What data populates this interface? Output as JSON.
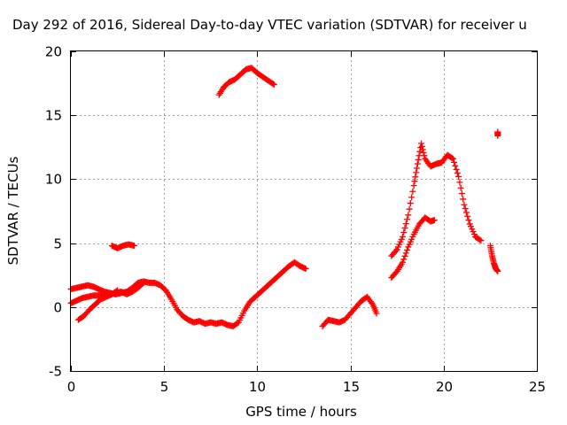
{
  "chart_data": {
    "type": "scatter",
    "title": "Day 292 of 2016, Sidereal Day-to-day VTEC variation (SDTVAR) for receiver u",
    "xlabel": "GPS time / hours",
    "ylabel": "SDTVAR / TECUs",
    "xlim": [
      0,
      25
    ],
    "ylim": [
      -5,
      20
    ],
    "x_ticks": [
      0,
      5,
      10,
      15,
      20,
      25
    ],
    "y_ticks": [
      -5,
      0,
      5,
      10,
      15,
      20
    ],
    "x_tick_labels": [
      "0",
      "5",
      "10",
      "15",
      "20",
      "25"
    ],
    "y_tick_labels": [
      "-5",
      "0",
      "5",
      "10",
      "15",
      "20"
    ],
    "grid": true,
    "marker": "+",
    "color": "#ff0000",
    "series": [
      {
        "x": [
          0.0,
          0.3,
          0.6,
          0.9,
          1.2,
          1.5,
          1.8,
          2.1,
          2.4,
          2.7,
          3.0,
          3.3,
          3.6,
          3.9,
          4.2,
          4.5,
          4.8,
          5.1,
          5.4,
          5.7,
          6.0,
          6.3,
          6.6,
          6.9,
          7.2,
          7.5,
          7.8,
          8.1,
          8.4,
          8.7,
          9.0,
          9.3,
          9.6,
          9.9,
          10.2,
          10.5,
          10.8,
          11.1,
          11.4,
          11.7,
          12.0,
          12.3,
          12.6
        ],
        "y": [
          1.4,
          1.5,
          1.6,
          1.7,
          1.6,
          1.4,
          1.2,
          1.1,
          1.0,
          1.1,
          1.2,
          1.5,
          1.9,
          2.0,
          1.9,
          1.9,
          1.7,
          1.3,
          0.6,
          -0.2,
          -0.7,
          -1.0,
          -1.2,
          -1.1,
          -1.3,
          -1.2,
          -1.3,
          -1.2,
          -1.4,
          -1.5,
          -1.2,
          -0.3,
          0.4,
          0.8,
          1.2,
          1.6,
          2.0,
          2.4,
          2.8,
          3.2,
          3.5,
          3.2,
          3.0
        ]
      },
      {
        "x": [
          0.0,
          0.3,
          0.6,
          0.9,
          1.2,
          1.5,
          1.8,
          2.1,
          2.4,
          2.7,
          3.0,
          3.3,
          3.6,
          3.9
        ],
        "y": [
          0.3,
          0.5,
          0.7,
          0.8,
          0.9,
          0.9,
          1.0,
          1.0,
          1.1,
          1.2,
          1.0,
          1.2,
          1.5,
          1.9
        ]
      },
      {
        "x": [
          0.4,
          0.7,
          1.0,
          1.3,
          1.6,
          1.9,
          2.2,
          2.5
        ],
        "y": [
          -1.0,
          -0.7,
          -0.2,
          0.2,
          0.6,
          0.8,
          1.0,
          1.3
        ]
      },
      {
        "x": [
          2.2,
          2.5,
          2.8,
          3.1,
          3.4
        ],
        "y": [
          4.8,
          4.6,
          4.8,
          4.9,
          4.8
        ]
      },
      {
        "x": [
          7.95,
          8.2,
          8.5,
          8.8,
          9.1,
          9.4,
          9.7,
          10.0,
          10.3,
          10.6,
          10.9
        ],
        "y": [
          16.6,
          17.2,
          17.6,
          17.8,
          18.2,
          18.6,
          18.7,
          18.3,
          18.0,
          17.7,
          17.4
        ]
      },
      {
        "x": [
          13.5,
          13.8,
          14.1,
          14.4,
          14.7,
          15.0,
          15.3,
          15.6,
          15.9,
          16.2,
          16.4
        ],
        "y": [
          -1.5,
          -1.0,
          -1.1,
          -1.2,
          -1.0,
          -0.5,
          0.0,
          0.5,
          0.8,
          0.2,
          -0.5
        ]
      },
      {
        "x": [
          17.2,
          17.5,
          17.8,
          18.1,
          18.4,
          18.6,
          18.8,
          19.0,
          19.3,
          19.6,
          19.9,
          20.2,
          20.5,
          20.8,
          21.1,
          21.4,
          21.7,
          22.0
        ],
        "y": [
          4.0,
          4.5,
          5.5,
          7.2,
          9.5,
          11.2,
          12.8,
          11.6,
          11.0,
          11.2,
          11.3,
          11.9,
          11.6,
          10.2,
          8.0,
          6.5,
          5.5,
          5.2
        ]
      },
      {
        "x": [
          17.2,
          17.5,
          17.8,
          18.1,
          18.4,
          18.7,
          19.0,
          19.3,
          19.5
        ],
        "y": [
          2.3,
          2.8,
          3.5,
          4.7,
          5.7,
          6.5,
          7.0,
          6.7,
          6.8
        ]
      },
      {
        "x": [
          22.5,
          22.6,
          22.7,
          22.8,
          22.9
        ],
        "y": [
          4.8,
          4.0,
          3.4,
          3.0,
          2.8
        ]
      },
      {
        "x": [
          22.9,
          22.9
        ],
        "y": [
          13.7,
          13.4
        ]
      }
    ]
  }
}
